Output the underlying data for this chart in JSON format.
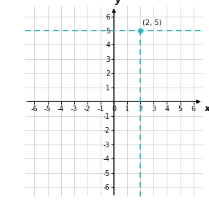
{
  "xlim": [
    -6.7,
    6.7
  ],
  "ylim": [
    -6.7,
    6.7
  ],
  "xticks": [
    -6,
    -5,
    -4,
    -3,
    -2,
    -1,
    0,
    1,
    2,
    3,
    4,
    5,
    6
  ],
  "yticks": [
    -6,
    -5,
    -4,
    -3,
    -2,
    -1,
    0,
    1,
    2,
    3,
    4,
    5,
    6
  ],
  "point_x": 2,
  "point_y": 5,
  "point_color": "#29b8b8",
  "dashed_color": "#29b8b8",
  "label": "(2, 5)",
  "label_fontsize": 7.5,
  "grid_color": "#c0c0c0",
  "axis_color": "#000000",
  "background_color": "#ffffff",
  "figsize": [
    3.01,
    3.08
  ],
  "dpi": 100,
  "tick_fontsize": 7.0,
  "axis_label_fontsize": 9
}
